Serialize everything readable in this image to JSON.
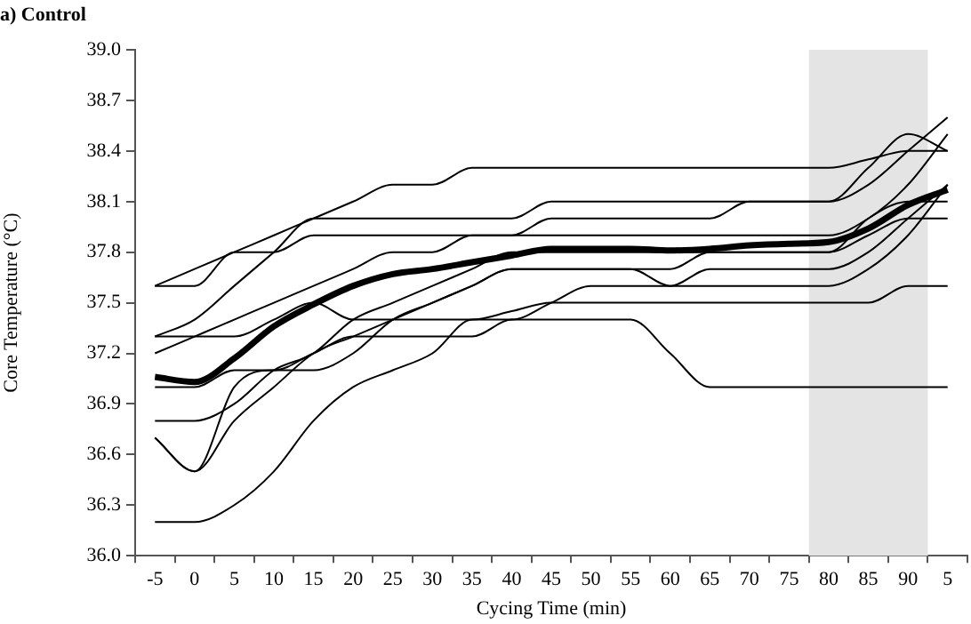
{
  "chart_data": {
    "type": "line",
    "title": "a) Control",
    "xlabel": "Cycing Time (min)",
    "ylabel": "Core Temperature (°C)",
    "categories": [
      "-5",
      "0",
      "5",
      "10",
      "15",
      "20",
      "25",
      "30",
      "35",
      "40",
      "45",
      "50",
      "55",
      "60",
      "65",
      "70",
      "75",
      "80",
      "85",
      "90",
      "5"
    ],
    "ylim": [
      36.0,
      39.0
    ],
    "yticks": [
      {
        "value": 36.0,
        "label": "36.0"
      },
      {
        "value": 36.3,
        "label": "36.3"
      },
      {
        "value": 36.6,
        "label": "36.6"
      },
      {
        "value": 36.9,
        "label": "36.9"
      },
      {
        "value": 37.2,
        "label": "37.2"
      },
      {
        "value": 37.5,
        "label": "37.5"
      },
      {
        "value": 37.8,
        "label": "37.8"
      },
      {
        "value": 38.1,
        "label": "38.1"
      },
      {
        "value": 38.4,
        "label": "38.4"
      },
      {
        "value": 38.7,
        "label": "38.7"
      },
      {
        "value": 39.0,
        "label": "39.0"
      }
    ],
    "bands": [
      {
        "axis": "x",
        "from": "80",
        "to": "90",
        "color": "#e4e4e4"
      }
    ],
    "grid": false,
    "legend": false,
    "marker": "none",
    "line_style": "solid",
    "series": [
      {
        "color": "#000000",
        "values": [
          37.6,
          37.7,
          37.8,
          37.9,
          38.0,
          38.1,
          38.2,
          38.2,
          38.3,
          38.3,
          38.3,
          38.3,
          38.3,
          38.3,
          38.3,
          38.3,
          38.3,
          38.3,
          38.35,
          38.4,
          38.4
        ]
      },
      {
        "color": "#000000",
        "values": [
          37.3,
          37.4,
          37.6,
          37.8,
          38.0,
          38.0,
          38.0,
          38.0,
          38.0,
          38.0,
          38.1,
          38.1,
          38.1,
          38.1,
          38.1,
          38.1,
          38.1,
          38.1,
          38.3,
          38.5,
          38.4
        ]
      },
      {
        "color": "#000000",
        "values": [
          37.6,
          37.6,
          37.8,
          37.8,
          37.9,
          37.9,
          37.9,
          37.9,
          37.9,
          37.9,
          38.0,
          38.0,
          38.0,
          38.0,
          38.0,
          38.1,
          38.1,
          38.1,
          38.2,
          38.4,
          38.6
        ]
      },
      {
        "color": "#000000",
        "values": [
          37.2,
          37.3,
          37.4,
          37.5,
          37.6,
          37.7,
          37.8,
          37.8,
          37.9,
          37.9,
          37.9,
          37.9,
          37.9,
          37.9,
          37.9,
          37.9,
          37.9,
          37.9,
          38.0,
          38.2,
          38.5
        ]
      },
      {
        "color": "#000000",
        "values": [
          37.3,
          37.3,
          37.3,
          37.4,
          37.5,
          37.4,
          37.4,
          37.4,
          37.4,
          37.45,
          37.5,
          37.5,
          37.5,
          37.5,
          37.5,
          37.5,
          37.5,
          37.5,
          37.5,
          37.6,
          37.6
        ]
      },
      {
        "color": "#000000",
        "values": [
          37.0,
          37.0,
          37.1,
          37.1,
          37.2,
          37.3,
          37.3,
          37.3,
          37.3,
          37.4,
          37.4,
          37.4,
          37.4,
          37.2,
          37.0,
          37.0,
          37.0,
          37.0,
          37.0,
          37.0,
          37.0
        ]
      },
      {
        "color": "#000000",
        "values": [
          36.7,
          36.5,
          37.0,
          37.1,
          37.1,
          37.2,
          37.4,
          37.5,
          37.6,
          37.7,
          37.7,
          37.7,
          37.7,
          37.7,
          37.8,
          37.8,
          37.8,
          37.8,
          38.0,
          38.1,
          38.1
        ]
      },
      {
        "color": "#000000",
        "values": [
          36.8,
          36.8,
          36.9,
          37.1,
          37.2,
          37.4,
          37.5,
          37.6,
          37.7,
          37.8,
          37.8,
          37.8,
          37.8,
          37.8,
          37.8,
          37.8,
          37.8,
          37.8,
          37.9,
          38.0,
          38.0
        ]
      },
      {
        "color": "#000000",
        "values": [
          36.7,
          36.5,
          36.8,
          37.0,
          37.2,
          37.3,
          37.4,
          37.5,
          37.6,
          37.7,
          37.7,
          37.7,
          37.7,
          37.6,
          37.6,
          37.6,
          37.6,
          37.6,
          37.7,
          37.9,
          38.2
        ]
      },
      {
        "color": "#000000",
        "values": [
          36.2,
          36.2,
          36.3,
          36.5,
          36.8,
          37.0,
          37.1,
          37.2,
          37.4,
          37.4,
          37.5,
          37.6,
          37.6,
          37.6,
          37.7,
          37.7,
          37.7,
          37.7,
          37.8,
          38.0,
          38.2
        ]
      },
      {
        "color": "#000000",
        "values": [
          37.06,
          37.03,
          37.17,
          37.36,
          37.49,
          37.6,
          37.67,
          37.7,
          37.74,
          37.78,
          37.82,
          37.82,
          37.82,
          37.81,
          37.82,
          37.84,
          37.85,
          37.86,
          37.94,
          38.08,
          38.17
        ]
      }
    ]
  }
}
